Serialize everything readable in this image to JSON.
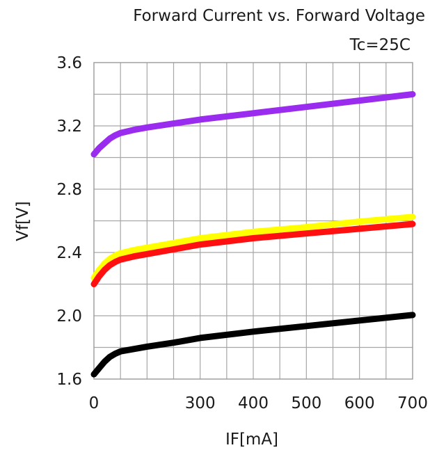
{
  "chart_data": {
    "type": "line",
    "title": "Forward Current vs. Forward Voltage",
    "subtitle": "Tc=25C",
    "xlabel": "IF[mA]",
    "ylabel": "Vf[V]",
    "xlim": [
      100,
      700
    ],
    "ylim": [
      1.6,
      3.6
    ],
    "x_ticks": [
      0,
      300,
      400,
      500,
      600,
      700
    ],
    "y_ticks": [
      "1.6",
      "2.0",
      "2.4",
      "2.8",
      "3.2",
      "3.6"
    ],
    "grid": true,
    "series": [
      {
        "color": "#9a2cf0",
        "x": [
          100,
          110,
          120,
          130,
          140,
          150,
          175,
          200,
          250,
          300,
          400,
          500,
          600,
          700
        ],
        "y": [
          3.02,
          3.06,
          3.09,
          3.12,
          3.14,
          3.155,
          3.175,
          3.19,
          3.215,
          3.24,
          3.28,
          3.32,
          3.36,
          3.4
        ]
      },
      {
        "color": "#ffff00",
        "x": [
          100,
          110,
          120,
          130,
          140,
          150,
          175,
          200,
          250,
          300,
          400,
          500,
          600,
          700
        ],
        "y": [
          2.24,
          2.29,
          2.33,
          2.36,
          2.38,
          2.395,
          2.415,
          2.43,
          2.46,
          2.49,
          2.53,
          2.56,
          2.595,
          2.625
        ]
      },
      {
        "color": "#ff1010",
        "x": [
          100,
          110,
          120,
          130,
          140,
          150,
          175,
          200,
          250,
          300,
          400,
          500,
          600,
          700
        ],
        "y": [
          2.2,
          2.25,
          2.29,
          2.32,
          2.34,
          2.355,
          2.375,
          2.39,
          2.42,
          2.45,
          2.49,
          2.52,
          2.55,
          2.58
        ]
      },
      {
        "color": "#000000",
        "x": [
          100,
          110,
          120,
          130,
          140,
          150,
          175,
          200,
          250,
          300,
          400,
          500,
          600,
          700
        ],
        "y": [
          1.63,
          1.67,
          1.71,
          1.74,
          1.76,
          1.775,
          1.79,
          1.805,
          1.83,
          1.86,
          1.9,
          1.935,
          1.97,
          2.005
        ]
      }
    ]
  }
}
